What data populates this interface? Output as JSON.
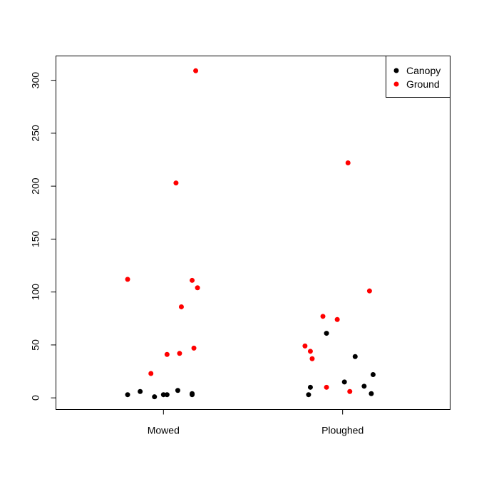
{
  "chart_data": {
    "type": "scatter",
    "title": "",
    "xlabel": "",
    "ylabel": "",
    "categories": [
      "Mowed",
      "Ploughed"
    ],
    "ylim": [
      -11,
      323
    ],
    "y_ticks": [
      0,
      50,
      100,
      150,
      200,
      250,
      300
    ],
    "y_tick_labels": [
      "0",
      "50",
      "100",
      "150",
      "200",
      "250",
      "300"
    ],
    "grid": false,
    "legend_position": "top-right",
    "series": [
      {
        "name": "Canopy",
        "color": "#000000",
        "points": [
          {
            "x": 0.8,
            "y": 3
          },
          {
            "x": 0.87,
            "y": 6
          },
          {
            "x": 0.95,
            "y": 1
          },
          {
            "x": 1.0,
            "y": 3
          },
          {
            "x": 1.02,
            "y": 3
          },
          {
            "x": 1.08,
            "y": 7
          },
          {
            "x": 1.16,
            "y": 3
          },
          {
            "x": 1.16,
            "y": 4
          },
          {
            "x": 1.81,
            "y": 3
          },
          {
            "x": 1.82,
            "y": 10
          },
          {
            "x": 1.91,
            "y": 61
          },
          {
            "x": 2.01,
            "y": 15
          },
          {
            "x": 2.07,
            "y": 39
          },
          {
            "x": 2.12,
            "y": 11
          },
          {
            "x": 2.16,
            "y": 4
          },
          {
            "x": 2.17,
            "y": 22
          }
        ]
      },
      {
        "name": "Ground",
        "color": "#ff0000",
        "points": [
          {
            "x": 0.8,
            "y": 112
          },
          {
            "x": 0.93,
            "y": 23
          },
          {
            "x": 1.02,
            "y": 41
          },
          {
            "x": 1.07,
            "y": 203
          },
          {
            "x": 1.09,
            "y": 42
          },
          {
            "x": 1.1,
            "y": 86
          },
          {
            "x": 1.16,
            "y": 111
          },
          {
            "x": 1.17,
            "y": 47
          },
          {
            "x": 1.18,
            "y": 309
          },
          {
            "x": 1.19,
            "y": 104
          },
          {
            "x": 1.79,
            "y": 49
          },
          {
            "x": 1.82,
            "y": 44
          },
          {
            "x": 1.83,
            "y": 37
          },
          {
            "x": 1.89,
            "y": 77
          },
          {
            "x": 1.91,
            "y": 10
          },
          {
            "x": 1.97,
            "y": 74
          },
          {
            "x": 2.03,
            "y": 222
          },
          {
            "x": 2.04,
            "y": 6
          },
          {
            "x": 2.15,
            "y": 101
          }
        ]
      }
    ]
  }
}
